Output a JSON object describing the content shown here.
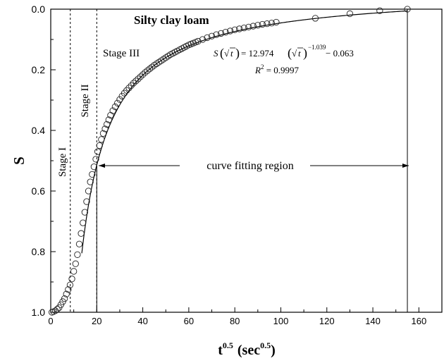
{
  "chart_data": {
    "type": "scatter",
    "title": "Silty clay loam",
    "xlabel": "t",
    "xlabel_sup": "0.5",
    "xlabel_unit": "(sec",
    "xlabel_unit_sup": "0.5",
    "xlabel_unit_close": ")",
    "ylabel": "S",
    "xlim": [
      0,
      170
    ],
    "ylim": [
      1.0,
      0.0
    ],
    "y_inverted": true,
    "x_ticks": [
      "0",
      "20",
      "40",
      "60",
      "80",
      "100",
      "120",
      "140",
      "160"
    ],
    "y_ticks": [
      "0.0",
      "0.2",
      "0.4",
      "0.6",
      "0.8",
      "1.0"
    ],
    "grid": false,
    "annotations": {
      "stage1": "Stage I",
      "stage2": "Stage II",
      "stage3": "Stage III",
      "fit_region": "curve fitting region",
      "stage_lines_x": [
        8.5,
        20
      ],
      "fit_end_x": 155
    },
    "equation": {
      "lhs": "S",
      "lhs_arg": "t",
      "coef": "= 12.974",
      "exponent": "−1.039",
      "const": " − 0.063",
      "r2_label": "R",
      "r2_sup": "2",
      "r2_value": " = 0.9997"
    },
    "fit_curve": {
      "formula": "S = 12.974 * x^-1.039 - 0.063",
      "a": 12.974,
      "b": -1.039,
      "c": -0.063,
      "x_start": 13.5,
      "x_end": 155
    },
    "series": [
      {
        "marker": "open-circle",
        "x": [
          0.5,
          1.2,
          2,
          2.8,
          3.6,
          4.4,
          5.2,
          6,
          6.8,
          7.6,
          8.4,
          9.2,
          10,
          10.8,
          11.6,
          12.4,
          13.2,
          14,
          14.8,
          15.6,
          16.4,
          17.2,
          18,
          18.8,
          19.6,
          20.4,
          21.2,
          22,
          22.8,
          23.6,
          24.4,
          25.2,
          26,
          27,
          28,
          29,
          30,
          31,
          32,
          33,
          34,
          35,
          36,
          37,
          38,
          39,
          40,
          41,
          42,
          43,
          44,
          45,
          46,
          47,
          48,
          49,
          50,
          51,
          52,
          53,
          54,
          55,
          56,
          57,
          58,
          59,
          60,
          61,
          62,
          63,
          64,
          66,
          68,
          70,
          72,
          74,
          76,
          78,
          80,
          82,
          84,
          86,
          88,
          90,
          92,
          94,
          96,
          98,
          115,
          130,
          143,
          155
        ],
        "y": [
          1.0,
          0.998,
          0.995,
          0.99,
          0.985,
          0.975,
          0.965,
          0.955,
          0.94,
          0.925,
          0.91,
          0.89,
          0.865,
          0.84,
          0.81,
          0.775,
          0.74,
          0.705,
          0.67,
          0.635,
          0.6,
          0.57,
          0.545,
          0.52,
          0.495,
          0.47,
          0.45,
          0.43,
          0.41,
          0.395,
          0.38,
          0.365,
          0.35,
          0.335,
          0.322,
          0.31,
          0.298,
          0.287,
          0.277,
          0.268,
          0.26,
          0.252,
          0.244,
          0.237,
          0.23,
          0.223,
          0.216,
          0.209,
          0.203,
          0.197,
          0.191,
          0.185,
          0.18,
          0.175,
          0.17,
          0.165,
          0.16,
          0.155,
          0.15,
          0.146,
          0.142,
          0.138,
          0.134,
          0.13,
          0.126,
          0.122,
          0.118,
          0.115,
          0.112,
          0.109,
          0.106,
          0.1,
          0.094,
          0.089,
          0.084,
          0.08,
          0.076,
          0.072,
          0.068,
          0.065,
          0.062,
          0.059,
          0.056,
          0.053,
          0.05,
          0.048,
          0.046,
          0.043,
          0.03,
          0.015,
          0.005,
          0.0
        ]
      }
    ]
  }
}
